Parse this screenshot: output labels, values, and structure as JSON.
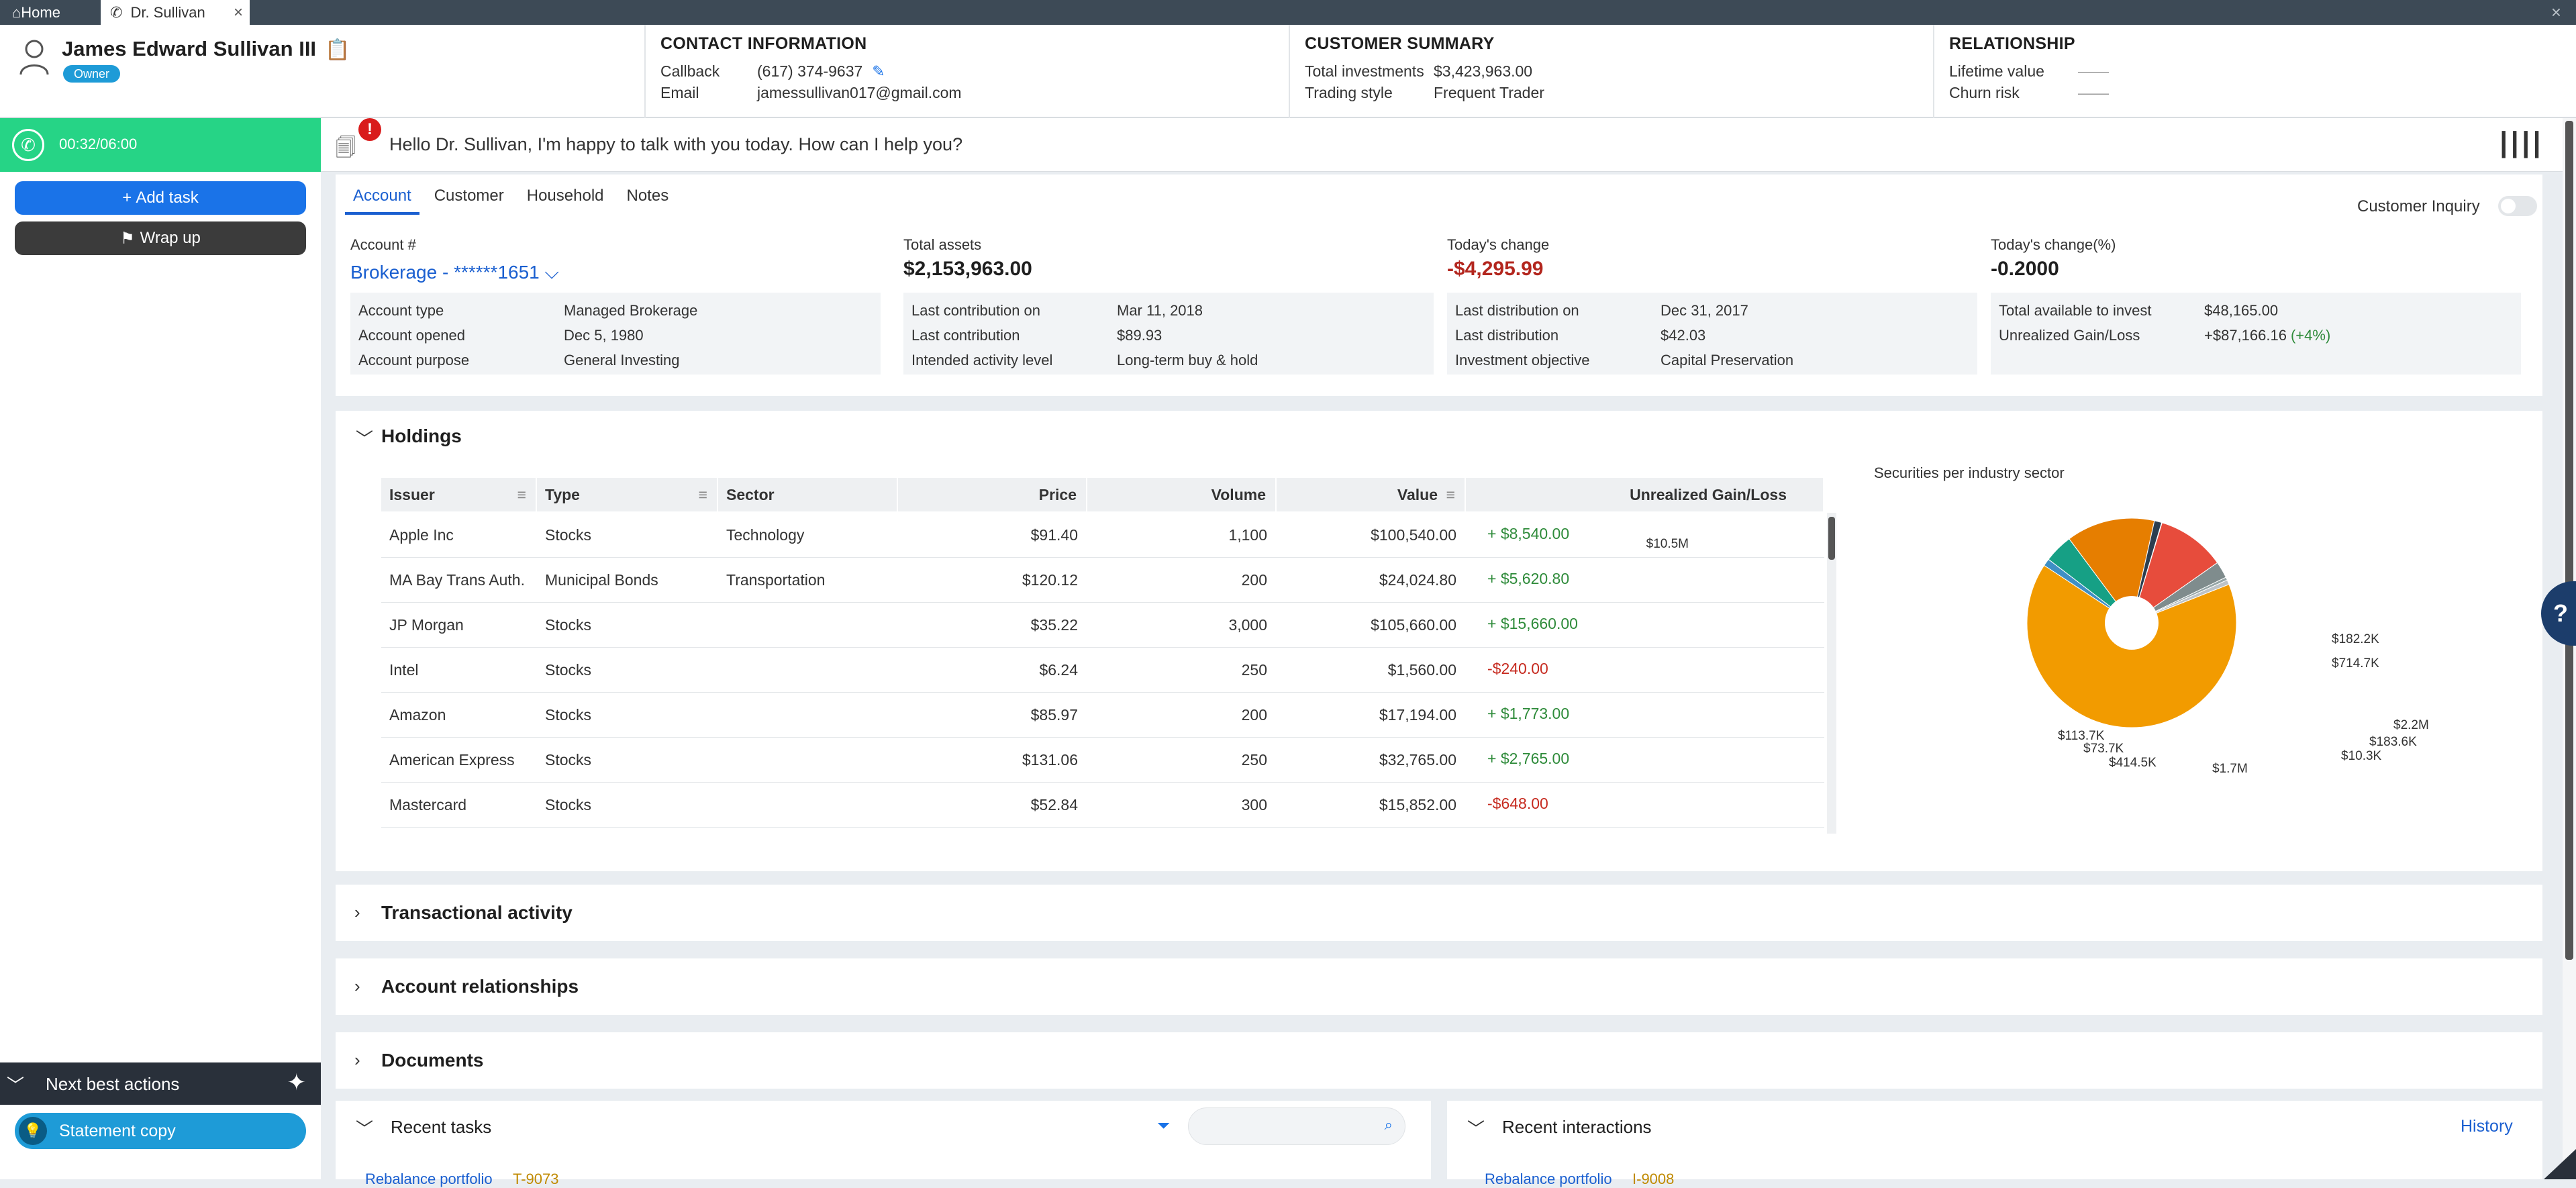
{
  "tabs": {
    "home": "Home",
    "active": "Dr. Sullivan"
  },
  "header": {
    "customer_name": "James Edward Sullivan III",
    "badge": "Owner",
    "contact": {
      "title": "CONTACT INFORMATION",
      "callback_label": "Callback",
      "callback_value": "(617) 374-9637",
      "email_label": "Email",
      "email_value": "jamessullivan017@gmail.com"
    },
    "summary": {
      "title": "CUSTOMER SUMMARY",
      "investments_label": "Total investments",
      "investments_value": "$3,423,963.00",
      "style_label": "Trading style",
      "style_value": "Frequent Trader"
    },
    "relationship": {
      "title": "RELATIONSHIP",
      "lifetime_label": "Lifetime value",
      "lifetime_value": "——",
      "churn_label": "Churn risk",
      "churn_value": "——"
    }
  },
  "call": {
    "timer": "00:32/06:00"
  },
  "left": {
    "add_task": "Add task",
    "wrap_up": "Wrap up",
    "nba_title": "Next best actions",
    "statement": "Statement copy"
  },
  "greeting": {
    "alert": "!",
    "text": "Hello Dr. Sullivan, I'm happy to talk with you today. How can I help you?"
  },
  "account": {
    "tabs": [
      "Account",
      "Customer",
      "Household",
      "Notes"
    ],
    "inquiry_label": "Customer Inquiry",
    "acct_label": "Account #",
    "acct_value": "Brokerage - ******1651",
    "assets_label": "Total assets",
    "assets_value": "$2,153,963.00",
    "change_label": "Today's change",
    "change_value": "-$4,295.99",
    "change_pct_label": "Today's change(%)",
    "change_pct_value": "-0.2000",
    "col1": [
      [
        "Account type",
        "Managed Brokerage"
      ],
      [
        "Account opened",
        "Dec 5, 1980"
      ],
      [
        "Account purpose",
        "General Investing"
      ]
    ],
    "col2": [
      [
        "Last contribution on",
        "Mar 11, 2018"
      ],
      [
        "Last contribution",
        "$89.93"
      ],
      [
        "Intended activity level",
        "Long-term buy & hold"
      ]
    ],
    "col3": [
      [
        "Last distribution on",
        "Dec 31, 2017"
      ],
      [
        "Last distribution",
        "$42.03"
      ],
      [
        "Investment objective",
        "Capital Preservation"
      ]
    ],
    "col4": [
      [
        "Total available to invest",
        "$48,165.00"
      ],
      [
        "Unrealized Gain/Loss",
        "+$87,166.16"
      ]
    ],
    "gain_pct": "(+4%)"
  },
  "holdings": {
    "title": "Holdings",
    "headers": [
      "Issuer",
      "Type",
      "Sector",
      "Price",
      "Volume",
      "Value",
      "Unrealized Gain/Loss"
    ],
    "rows": [
      [
        "Apple Inc",
        "Stocks",
        "Technology",
        "$91.40",
        "1,100",
        "$100,540.00",
        "+ $8,540.00"
      ],
      [
        "MA Bay Trans Auth.",
        "Municipal Bonds",
        "Transportation",
        "$120.12",
        "200",
        "$24,024.80",
        "+ $5,620.80"
      ],
      [
        "JP Morgan",
        "Stocks",
        "",
        "$35.22",
        "3,000",
        "$105,660.00",
        "+ $15,660.00"
      ],
      [
        "Intel",
        "Stocks",
        "",
        "$6.24",
        "250",
        "$1,560.00",
        "-$240.00"
      ],
      [
        "Amazon",
        "Stocks",
        "",
        "$85.97",
        "200",
        "$17,194.00",
        "+ $1,773.00"
      ],
      [
        "American Express",
        "Stocks",
        "",
        "$131.06",
        "250",
        "$32,765.00",
        "+ $2,765.00"
      ],
      [
        "Mastercard",
        "Stocks",
        "",
        "$52.84",
        "300",
        "$15,852.00",
        "-$648.00"
      ]
    ]
  },
  "chart_data": {
    "type": "pie",
    "title": "Securities per industry sector",
    "slices": [
      {
        "label": "$10.5M",
        "value": 10500000,
        "color": "#f29b00"
      },
      {
        "label": "$182.2K",
        "value": 182200,
        "color": "#3f8fc4"
      },
      {
        "label": "$714.7K",
        "value": 714700,
        "color": "#16a085"
      },
      {
        "label": "$2.2M",
        "value": 2200000,
        "color": "#e67e00"
      },
      {
        "label": "$183.6K",
        "value": 183600,
        "color": "#2c3e50"
      },
      {
        "label": "$10.3K",
        "value": 10300,
        "color": "#34495e"
      },
      {
        "label": "$1.7M",
        "value": 1700000,
        "color": "#e74c3c"
      },
      {
        "label": "$414.5K",
        "value": 414500,
        "color": "#7f8c8d"
      },
      {
        "label": "$73.7K",
        "value": 73700,
        "color": "#95a5a6"
      },
      {
        "label": "$113.7K",
        "value": 113700,
        "color": "#bdc3c7"
      }
    ],
    "donut_hole": true
  },
  "sections": {
    "tx": "Transactional activity",
    "rel": "Account relationships",
    "docs": "Documents"
  },
  "bottom": {
    "tasks_title": "Recent tasks",
    "interact_title": "Recent interactions",
    "history": "History",
    "task_peek": "Rebalance portfolio",
    "task_id": "T-9073",
    "interact_peek": "Rebalance portfolio",
    "interact_id": "I-9008"
  },
  "colors": {
    "accent": "#1a5fd0",
    "call_green": "#26d486",
    "gain": "#2e8b3a",
    "loss": "#c62a1f"
  }
}
